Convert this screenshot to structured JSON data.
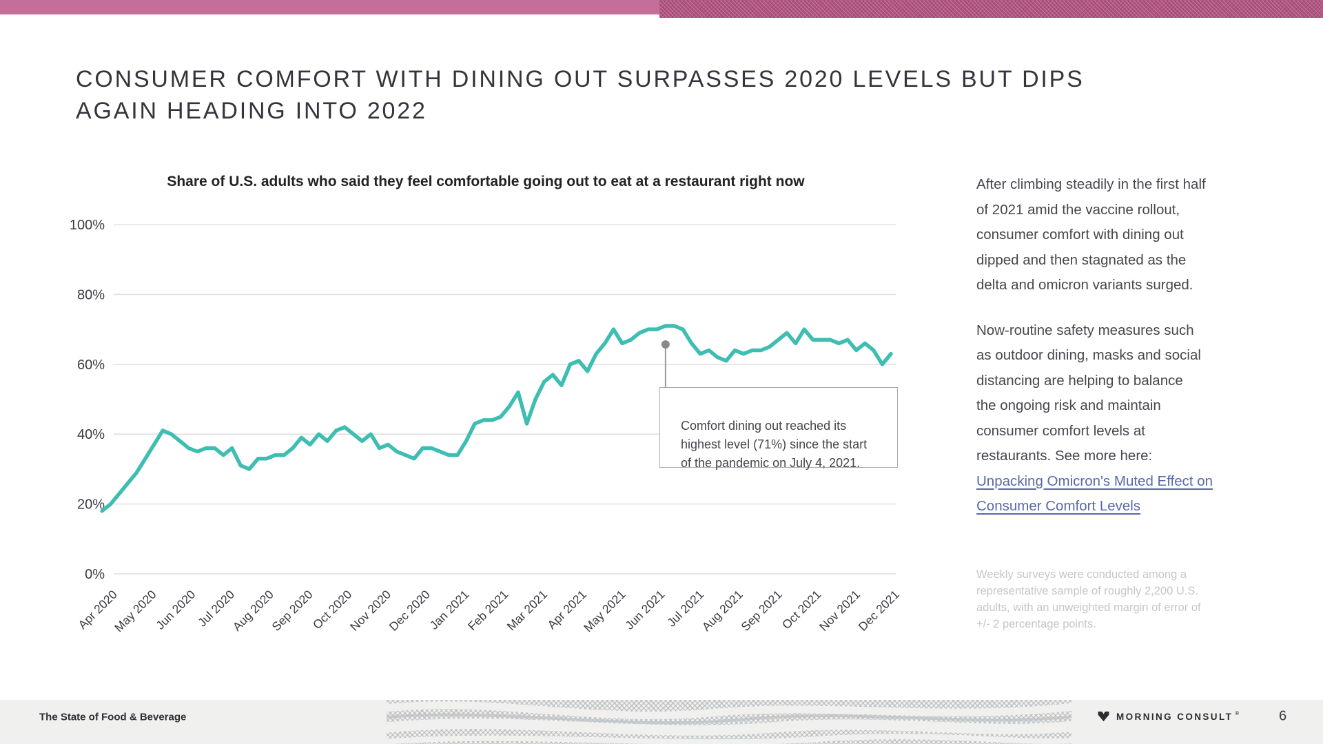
{
  "slide": {
    "title_lines": [
      "CONSUMER COMFORT WITH DINING OUT SURPASSES 2020 LEVELS BUT DIPS",
      "AGAIN HEADING INTO 2022"
    ]
  },
  "chart": {
    "title": "Share of U.S. adults who said they feel comfortable going out to eat at a restaurant right now"
  },
  "chart_data": {
    "type": "line",
    "title": "Share of U.S. adults who said they feel comfortable going out to eat at a restaurant right now",
    "series_name": "Comfortable going out to eat at a restaurant",
    "unit": "percent",
    "cadence": "weekly",
    "x_range": [
      "Apr 2020",
      "Dec 2021"
    ],
    "x_tick_labels": [
      "Apr 2020",
      "May 2020",
      "Jun 2020",
      "Jul 2020",
      "Aug 2020",
      "Sep 2020",
      "Oct 2020",
      "Nov 2020",
      "Dec 2020",
      "Jan 2021",
      "Feb 2021",
      "Mar 2021",
      "Apr 2021",
      "May 2021",
      "Jun 2021",
      "Jul 2021",
      "Aug 2021",
      "Sep 2021",
      "Oct 2021",
      "Nov 2021",
      "Dec 2021"
    ],
    "y_ticks": [
      0,
      20,
      40,
      60,
      80,
      100
    ],
    "ylim": [
      0,
      100
    ],
    "grid": "horizontal",
    "legend": "none",
    "line_color": "#3ebdb2",
    "values": [
      18,
      20,
      23,
      26,
      29,
      33,
      37,
      41,
      40,
      38,
      36,
      35,
      36,
      36,
      34,
      36,
      31,
      30,
      33,
      33,
      34,
      34,
      36,
      39,
      37,
      40,
      38,
      41,
      42,
      40,
      38,
      40,
      36,
      37,
      35,
      34,
      33,
      36,
      36,
      35,
      34,
      34,
      38,
      43,
      44,
      44,
      45,
      48,
      52,
      43,
      50,
      55,
      57,
      54,
      60,
      61,
      58,
      63,
      66,
      70,
      66,
      67,
      69,
      70,
      70,
      71,
      71,
      70,
      66,
      63,
      64,
      62,
      61,
      64,
      63,
      64,
      64,
      65,
      67,
      69,
      66,
      70,
      67,
      67,
      67,
      66,
      67,
      64,
      66,
      64,
      60,
      63
    ],
    "annotation": {
      "text_lines": [
        "Comfort dining out reached its",
        "highest level (71%) since the start",
        "of the pandemic on July 4, 2021."
      ],
      "anchor_index": 65,
      "anchor_value": 71,
      "peak_value_pct": 71,
      "peak_date": "July 4, 2021"
    }
  },
  "sidebar": {
    "para1_lines": [
      "After climbing steadily in the first half",
      "of 2021 amid the vaccine rollout,",
      "consumer comfort with dining out",
      "dipped and then stagnated as the",
      "delta and omicron variants surged."
    ],
    "para2_lines": [
      "Now-routine safety measures such",
      "as outdoor dining, masks and social",
      "distancing are helping to balance",
      "the ongoing risk and maintain",
      "consumer comfort levels at",
      "restaurants. See more here:"
    ],
    "link_lines": [
      "Unpacking Omicron's Muted Effect on",
      "Consumer Comfort Levels"
    ],
    "footnote_lines": [
      "Weekly surveys were conducted among a",
      "representative sample of roughly 2,200 U.S.",
      "adults, with an unweighted margin of error of",
      "+/- 2 percentage points."
    ]
  },
  "footer": {
    "left": "The State of Food & Beverage",
    "brand": "MORNING CONSULT",
    "reg": "®",
    "page": "6"
  },
  "colors": {
    "accent_teal": "#3ebdb2",
    "banner_pink": "#c46e99",
    "banner_pattern_pink": "#b05580",
    "link_blue": "#5a68ac",
    "footnote_gray": "#c6c6c6",
    "gridline_gray": "#e1e1e1",
    "footer_bg": "#f0f0ef"
  }
}
